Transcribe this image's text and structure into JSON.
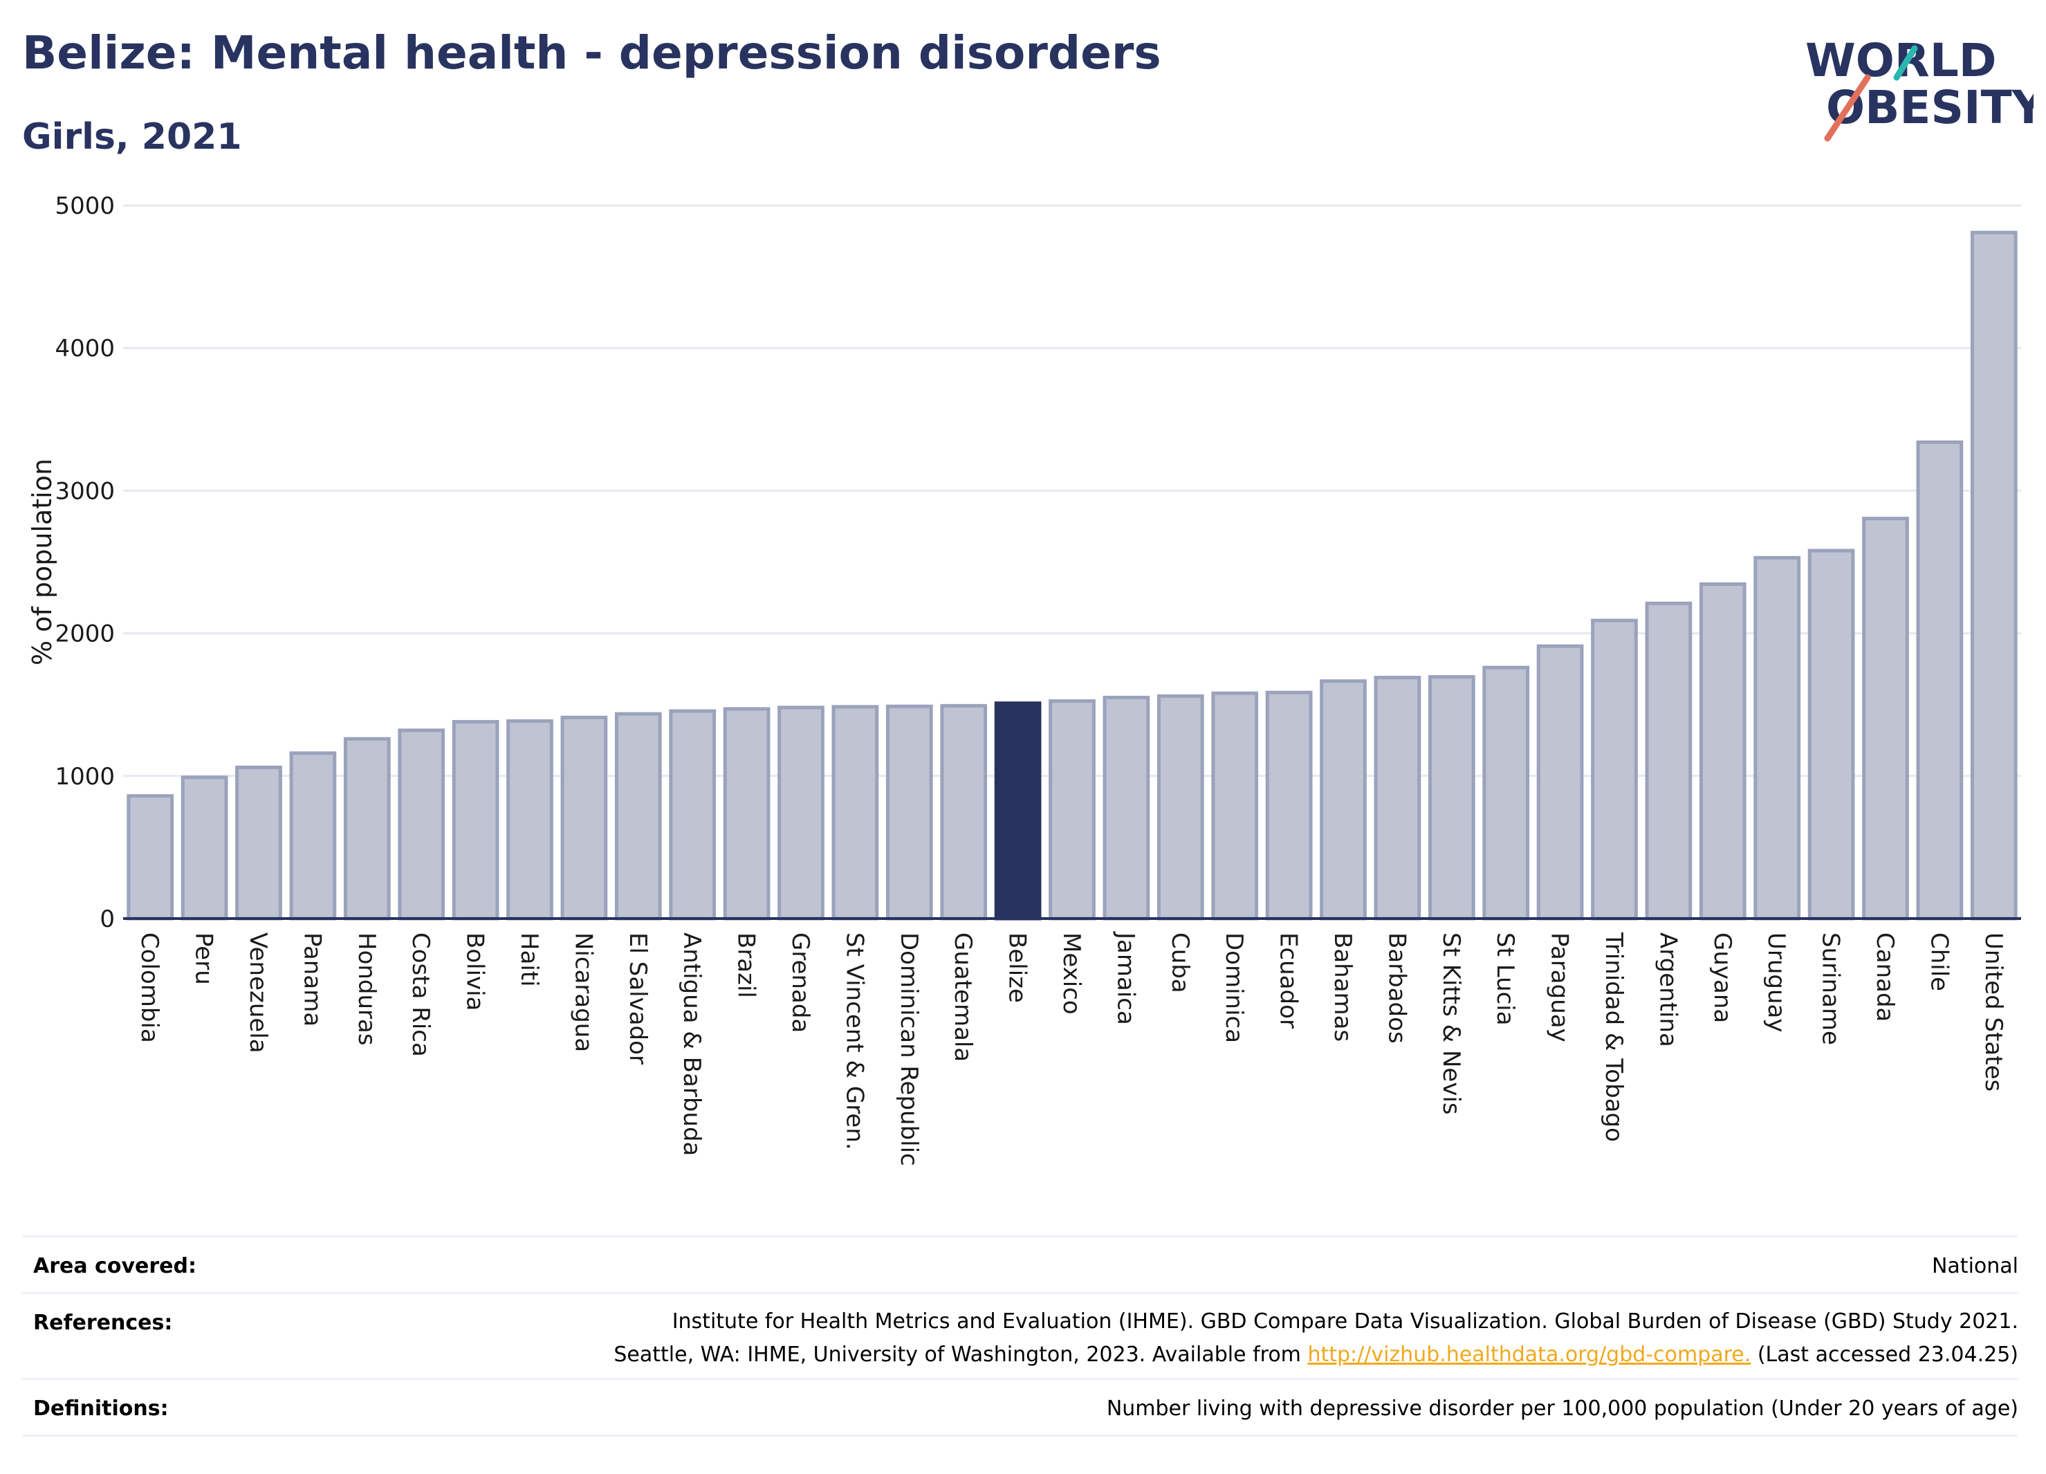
{
  "title": "Belize: Mental health - depression disorders",
  "subtitle": "Girls, 2021",
  "logo": {
    "line1": "WORLD",
    "line2": "OBESITY"
  },
  "colors": {
    "bar": "#bfc3d2",
    "bar_border": "#9ba2bb",
    "highlight": "#283360",
    "grid": "#e6e8ef",
    "axis": "#283360",
    "link": "#f0a81c"
  },
  "chart_data": {
    "type": "bar",
    "ylabel": "% of population",
    "ylim": [
      0,
      5000
    ],
    "yticks": [
      0,
      1000,
      2000,
      3000,
      4000,
      5000
    ],
    "highlight": "Belize",
    "grid": true,
    "categories": [
      "Colombia",
      "Peru",
      "Venezuela",
      "Panama",
      "Honduras",
      "Costa Rica",
      "Bolivia",
      "Haiti",
      "Nicaragua",
      "El Salvador",
      "Antigua & Barbuda",
      "Brazil",
      "Grenada",
      "St Vincent & Gren.",
      "Dominican Republic",
      "Guatemala",
      "Belize",
      "Mexico",
      "Jamaica",
      "Cuba",
      "Dominica",
      "Ecuador",
      "Bahamas",
      "Barbados",
      "St Kitts & Nevis",
      "St Lucia",
      "Paraguay",
      "Trinidad & Tobago",
      "Argentina",
      "Guyana",
      "Uruguay",
      "Suriname",
      "Canada",
      "Chile",
      "United States"
    ],
    "values": [
      860,
      990,
      1060,
      1160,
      1260,
      1320,
      1380,
      1385,
      1410,
      1435,
      1455,
      1470,
      1480,
      1485,
      1488,
      1492,
      1510,
      1525,
      1550,
      1560,
      1580,
      1585,
      1665,
      1690,
      1695,
      1760,
      1910,
      2090,
      2210,
      2345,
      2530,
      2580,
      2805,
      3340,
      4810
    ]
  },
  "footer": {
    "area_label": "Area covered:",
    "area_value": "National",
    "references_label": "References:",
    "references_line1": "Institute for Health Metrics and Evaluation (IHME). GBD Compare Data Visualization. Global Burden of Disease (GBD) Study 2021.",
    "references_line2_pre": "Seattle, WA: IHME, University of Washington, 2023. Available from ",
    "references_link": "http://vizhub.healthdata.org/gbd-compare.",
    "references_line2_post": " (Last accessed 23.04.25)",
    "definitions_label": "Definitions:",
    "definitions_value": "Number living with depressive disorder per 100,000 population (Under 20 years of age)"
  }
}
